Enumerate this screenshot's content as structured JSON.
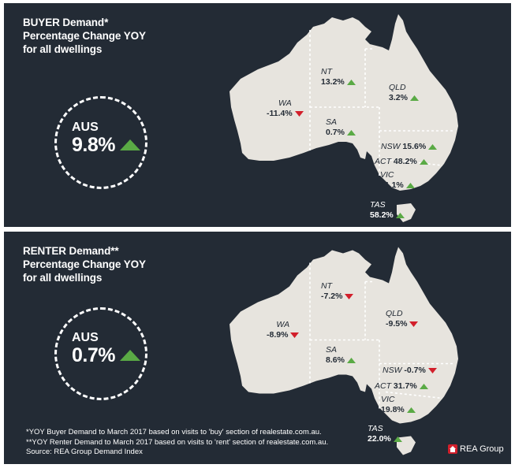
{
  "colors": {
    "panel_bg": "#232b35",
    "land": "#e7e4de",
    "up": "#5aaa45",
    "down": "#d21f2b",
    "text_dark": "#232b35"
  },
  "buyer": {
    "title_lines": [
      "BUYER Demand*",
      "Percentage Change YOY",
      "for all dwellings"
    ],
    "aus": {
      "label": "AUS",
      "value": "9.8%",
      "direction": "up"
    },
    "regions": {
      "wa": {
        "name": "WA",
        "value": "-11.4%",
        "direction": "down"
      },
      "nt": {
        "name": "NT",
        "value": "13.2%",
        "direction": "up"
      },
      "qld": {
        "name": "QLD",
        "value": "3.2%",
        "direction": "up"
      },
      "sa": {
        "name": "SA",
        "value": "0.7%",
        "direction": "up"
      },
      "nsw": {
        "name": "NSW",
        "value": "15.6%",
        "direction": "up"
      },
      "act": {
        "name": "ACT",
        "value": "48.2%",
        "direction": "up"
      },
      "vic": {
        "name": "VIC",
        "value": "21.1%",
        "direction": "up"
      },
      "tas": {
        "name": "TAS",
        "value": "58.2%",
        "direction": "up"
      }
    }
  },
  "renter": {
    "title_lines": [
      "RENTER Demand**",
      "Percentage Change YOY",
      "for all dwellings"
    ],
    "aus": {
      "label": "AUS",
      "value": "0.7%",
      "direction": "up"
    },
    "regions": {
      "wa": {
        "name": "WA",
        "value": "-8.9%",
        "direction": "down"
      },
      "nt": {
        "name": "NT",
        "value": "-7.2%",
        "direction": "down"
      },
      "qld": {
        "name": "QLD",
        "value": "-9.5%",
        "direction": "down"
      },
      "sa": {
        "name": "SA",
        "value": "8.6%",
        "direction": "up"
      },
      "nsw": {
        "name": "NSW",
        "value": "-0.7%",
        "direction": "down"
      },
      "act": {
        "name": "ACT",
        "value": "31.7%",
        "direction": "up"
      },
      "vic": {
        "name": "VIC",
        "value": "19.8%",
        "direction": "up"
      },
      "tas": {
        "name": "TAS",
        "value": "22.0%",
        "direction": "up"
      }
    }
  },
  "footnotes": [
    "*YOY Buyer Demand to March 2017 based on visits to 'buy' section of realestate.com.au.",
    "**YOY Renter Demand to March 2017 based on visits to 'rent' section of realestate.com.au.",
    "Source: REA Group Demand Index"
  ],
  "brand": {
    "name": "REA Group",
    "icon": "house-icon"
  }
}
